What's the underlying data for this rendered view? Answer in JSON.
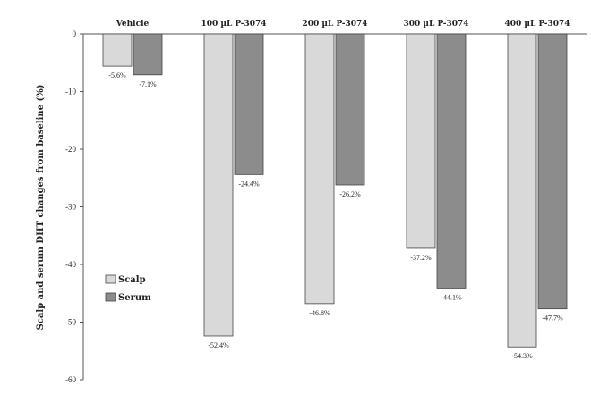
{
  "chart_data": {
    "type": "bar",
    "title": "",
    "xlabel": "",
    "ylabel": "Scalp and serum  DHT changes from baseline (%)",
    "ylim": [
      -60,
      0
    ],
    "yticks": [
      0,
      -10,
      -20,
      -30,
      -40,
      -50,
      -60
    ],
    "categories": [
      "Vehicle",
      "100 µL P-3074",
      "200 µL P-3074",
      "300 µL P-3074",
      "400 µL P-3074"
    ],
    "category_axis": "top",
    "grid": false,
    "legend_position": "bottom-left",
    "series": [
      {
        "name": "Scalp",
        "color": "#d9d9d9",
        "values": [
          -5.6,
          -52.4,
          -46.8,
          -37.2,
          -54.3
        ],
        "labels": [
          "-5.6%",
          "-52.4%",
          "-46.8%",
          "-37.2%",
          "-54.3%"
        ]
      },
      {
        "name": "Serum",
        "color": "#8c8c8c",
        "values": [
          -7.1,
          -24.4,
          -26.2,
          -44.1,
          -47.7
        ],
        "labels": [
          "-7.1%",
          "-24.4%",
          "-26.2%",
          "-44.1%",
          "-47.7%"
        ]
      }
    ]
  }
}
